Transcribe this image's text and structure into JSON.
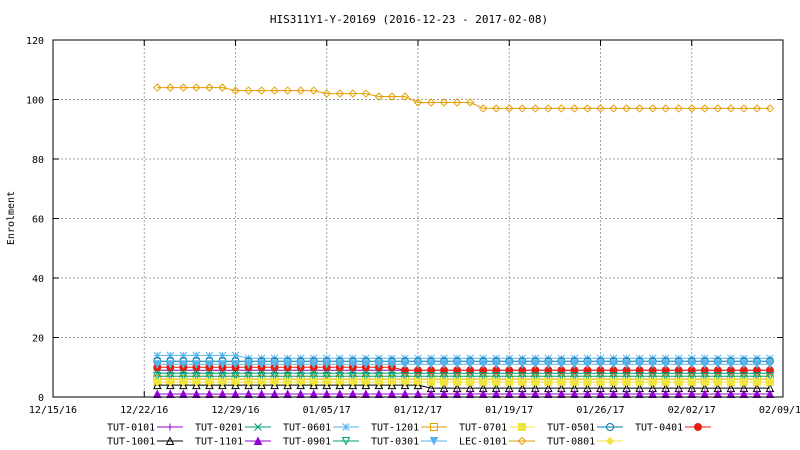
{
  "chart_data": {
    "type": "line",
    "title": "HIS311Y1-Y-20169 (2016-12-23 - 2017-02-08)",
    "ylabel": "Enrolment",
    "xlabel": "",
    "x_tick_labels": [
      "12/15/16",
      "12/22/16",
      "12/29/16",
      "01/05/17",
      "01/12/17",
      "01/19/17",
      "01/26/17",
      "02/02/17",
      "02/09/17"
    ],
    "x_range": [
      "2016-12-15",
      "2017-02-09"
    ],
    "dates": [
      "2016-12-23",
      "2016-12-24",
      "2016-12-25",
      "2016-12-26",
      "2016-12-27",
      "2016-12-28",
      "2016-12-29",
      "2016-12-30",
      "2016-12-31",
      "2017-01-01",
      "2017-01-02",
      "2017-01-03",
      "2017-01-04",
      "2017-01-05",
      "2017-01-06",
      "2017-01-07",
      "2017-01-08",
      "2017-01-09",
      "2017-01-10",
      "2017-01-11",
      "2017-01-12",
      "2017-01-13",
      "2017-01-14",
      "2017-01-15",
      "2017-01-16",
      "2017-01-17",
      "2017-01-18",
      "2017-01-19",
      "2017-01-20",
      "2017-01-21",
      "2017-01-22",
      "2017-01-23",
      "2017-01-24",
      "2017-01-25",
      "2017-01-26",
      "2017-01-27",
      "2017-01-28",
      "2017-01-29",
      "2017-01-30",
      "2017-01-31",
      "2017-02-01",
      "2017-02-02",
      "2017-02-03",
      "2017-02-04",
      "2017-02-05",
      "2017-02-06",
      "2017-02-07",
      "2017-02-08"
    ],
    "ylim": [
      0,
      120
    ],
    "y_ticks": [
      0,
      20,
      40,
      60,
      80,
      100,
      120
    ],
    "grid": true,
    "legend_position": "bottom",
    "series": [
      {
        "name": "TUT-0101",
        "color": "#9400d3",
        "marker": "plus",
        "segments": [
          {
            "from": 0,
            "to": 47,
            "value": 9
          }
        ]
      },
      {
        "name": "TUT-0201",
        "color": "#009e73",
        "marker": "x",
        "segments": [
          {
            "from": 0,
            "to": 47,
            "value": 8
          }
        ]
      },
      {
        "name": "TUT-0601",
        "color": "#56b4e9",
        "marker": "star",
        "segments": [
          {
            "from": 0,
            "to": 6,
            "value": 14
          },
          {
            "from": 7,
            "to": 47,
            "value": 13
          }
        ]
      },
      {
        "name": "TUT-1201",
        "color": "#e69f00",
        "marker": "open-square",
        "segments": [
          {
            "from": 0,
            "to": 47,
            "value": 6
          }
        ]
      },
      {
        "name": "TUT-0701",
        "color": "#f0e442",
        "marker": "filled-square",
        "segments": [
          {
            "from": 0,
            "to": 47,
            "value": 5
          }
        ]
      },
      {
        "name": "TUT-0501",
        "color": "#0072b2",
        "marker": "open-circle",
        "segments": [
          {
            "from": 0,
            "to": 47,
            "value": 12
          }
        ]
      },
      {
        "name": "TUT-0401",
        "color": "#e51e10",
        "marker": "filled-circle",
        "segments": [
          {
            "from": 0,
            "to": 18,
            "value": 10
          },
          {
            "from": 19,
            "to": 47,
            "value": 9
          }
        ]
      },
      {
        "name": "TUT-1001",
        "color": "#000000",
        "marker": "open-triangle",
        "segments": [
          {
            "from": 0,
            "to": 20,
            "value": 4
          },
          {
            "from": 21,
            "to": 47,
            "value": 3
          }
        ]
      },
      {
        "name": "TUT-1101",
        "color": "#9400d3",
        "marker": "filled-triangle",
        "segments": [
          {
            "from": 0,
            "to": 47,
            "value": 1
          }
        ]
      },
      {
        "name": "TUT-0901",
        "color": "#009e73",
        "marker": "open-down-triangle",
        "segments": [
          {
            "from": 0,
            "to": 47,
            "value": 7
          }
        ]
      },
      {
        "name": "TUT-0301",
        "color": "#56b4e9",
        "marker": "filled-down-triangle",
        "segments": [
          {
            "from": 0,
            "to": 47,
            "value": 11
          }
        ]
      },
      {
        "name": "LEC-0101",
        "color": "#e69f00",
        "marker": "open-diamond",
        "segments": [
          {
            "from": 0,
            "to": 5,
            "value": 104
          },
          {
            "from": 6,
            "to": 12,
            "value": 103
          },
          {
            "from": 13,
            "to": 16,
            "value": 102
          },
          {
            "from": 17,
            "to": 19,
            "value": 101
          },
          {
            "from": 20,
            "to": 24,
            "value": 99
          },
          {
            "from": 25,
            "to": 47,
            "value": 97
          }
        ]
      },
      {
        "name": "TUT-0801",
        "color": "#f0e442",
        "marker": "filled-diamond",
        "segments": [
          {
            "from": 0,
            "to": 47,
            "value": 5
          }
        ]
      }
    ]
  }
}
